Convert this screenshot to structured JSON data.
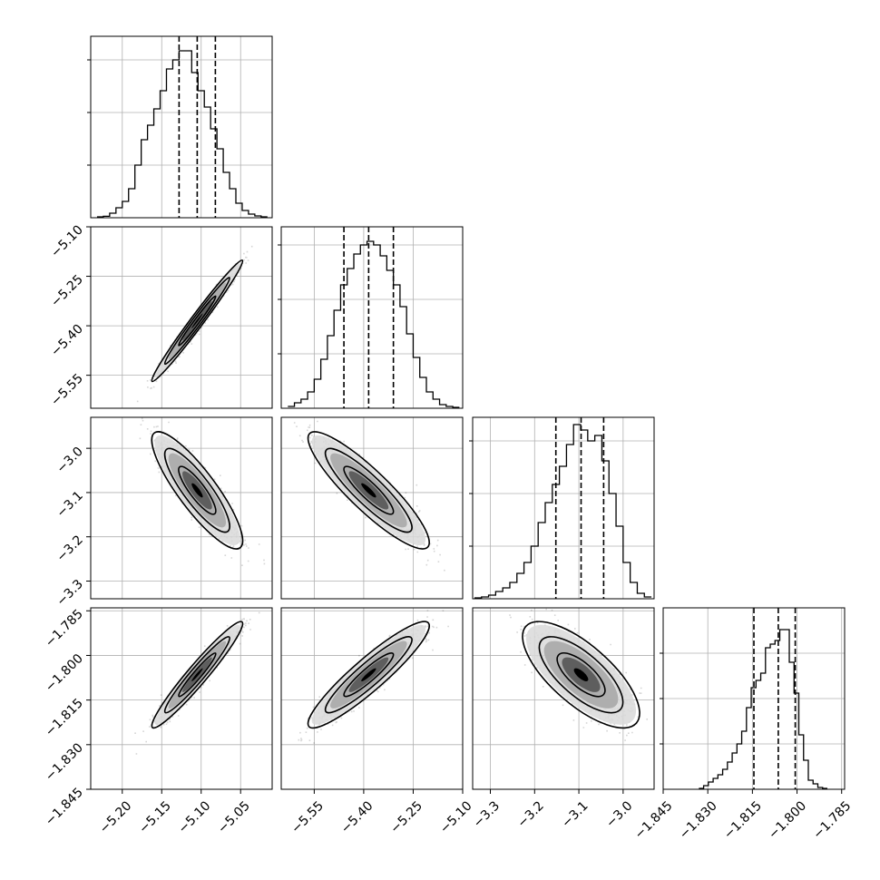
{
  "chart_data": {
    "type": "corner",
    "grid": true,
    "title": "",
    "parameters": [
      {
        "range": [
          -5.24,
          -5.01
        ],
        "ticks": [
          -5.2,
          -5.15,
          -5.1,
          -5.05
        ],
        "tick_labels": [
          "−5.20",
          "−5.15",
          "−5.10",
          "−5.05"
        ],
        "quantiles": [
          -5.128,
          -5.105,
          -5.082
        ],
        "hist_peak": 92,
        "hist_ymax": 100,
        "hist_yticks": [
          29,
          58,
          87
        ],
        "hist_edges": [
          -5.232,
          -5.224,
          -5.216,
          -5.208,
          -5.2,
          -5.192,
          -5.184,
          -5.176,
          -5.168,
          -5.16,
          -5.152,
          -5.144,
          -5.136,
          -5.128,
          -5.12,
          -5.112,
          -5.104,
          -5.096,
          -5.088,
          -5.08,
          -5.072,
          -5.064,
          -5.056,
          -5.048,
          -5.04,
          -5.032,
          -5.024,
          -5.016
        ],
        "hist_counts": [
          0.5,
          0.8,
          2.5,
          5.5,
          9,
          16,
          29,
          43,
          51,
          60,
          70,
          82,
          87,
          92,
          92,
          80,
          70,
          61,
          49,
          38,
          25,
          16,
          8,
          4,
          2,
          1,
          0.5
        ]
      },
      {
        "range": [
          -5.65,
          -5.1
        ],
        "ticks": [
          -5.55,
          -5.4,
          -5.25,
          -5.1
        ],
        "tick_labels": [
          "−5.55",
          "−5.40",
          "−5.25",
          "−5.10"
        ],
        "quantiles": [
          -5.46,
          -5.385,
          -5.31
        ],
        "hist_peak": 92,
        "hist_ymax": 100,
        "hist_yticks": [
          30,
          60,
          90
        ],
        "hist_edges": [
          -5.63,
          -5.61,
          -5.59,
          -5.57,
          -5.55,
          -5.53,
          -5.51,
          -5.49,
          -5.47,
          -5.45,
          -5.43,
          -5.41,
          -5.39,
          -5.37,
          -5.35,
          -5.33,
          -5.31,
          -5.29,
          -5.27,
          -5.25,
          -5.23,
          -5.21,
          -5.19,
          -5.17,
          -5.15,
          -5.13,
          -5.11
        ],
        "hist_counts": [
          1,
          3,
          5,
          9,
          16,
          27,
          40,
          54,
          68,
          77,
          85,
          90,
          92,
          90,
          84,
          76,
          68,
          56,
          41,
          28,
          17,
          9,
          5,
          2,
          1,
          0.5
        ]
      },
      {
        "range": [
          -3.34,
          -2.93
        ],
        "ticks": [
          -3.3,
          -3.2,
          -3.1,
          -3.0
        ],
        "tick_labels": [
          "−3.3",
          "−3.2",
          "−3.1",
          "−3.0"
        ],
        "quantiles": [
          -3.152,
          -3.095,
          -3.044
        ],
        "hist_peak": 96,
        "hist_ymax": 100,
        "hist_yticks": [
          29,
          58,
          87
        ],
        "hist_edges": [
          -3.336,
          -3.32,
          -3.304,
          -3.288,
          -3.272,
          -3.256,
          -3.24,
          -3.224,
          -3.208,
          -3.192,
          -3.176,
          -3.16,
          -3.144,
          -3.128,
          -3.112,
          -3.096,
          -3.08,
          -3.064,
          -3.048,
          -3.032,
          -3.016,
          -3.0,
          -2.984,
          -2.968,
          -2.952,
          -2.936
        ],
        "hist_counts": [
          0.5,
          1,
          2,
          4,
          6,
          9,
          14,
          20,
          29,
          42,
          53,
          63,
          73,
          85,
          96,
          93,
          87,
          90,
          76,
          58,
          40,
          20,
          9,
          3,
          1
        ]
      },
      {
        "range": [
          -1.845,
          -1.784
        ],
        "ticks": [
          -1.845,
          -1.83,
          -1.815,
          -1.8,
          -1.785
        ],
        "tick_labels": [
          "−1.845",
          "−1.830",
          "−1.815",
          "−1.800",
          "−1.785"
        ],
        "quantiles": [
          -1.8145,
          -1.8063,
          -1.8006
        ],
        "hist_peak": 88,
        "hist_ymax": 100,
        "hist_yticks": [
          25,
          50,
          75
        ],
        "hist_edges": [
          -1.833,
          -1.8314,
          -1.8298,
          -1.8282,
          -1.8266,
          -1.825,
          -1.8234,
          -1.8218,
          -1.8202,
          -1.8186,
          -1.817,
          -1.8154,
          -1.8138,
          -1.8122,
          -1.8106,
          -1.809,
          -1.8074,
          -1.8058,
          -1.8042,
          -1.8026,
          -1.801,
          -1.7994,
          -1.7978,
          -1.7962,
          -1.7946,
          -1.793,
          -1.7914,
          -1.7898
        ],
        "hist_counts": [
          0.5,
          2,
          4,
          6,
          8,
          11,
          15,
          20,
          25,
          32,
          45,
          56,
          60,
          64,
          78,
          80,
          82,
          88,
          88,
          70,
          53,
          30,
          16,
          5,
          3,
          1,
          0.5
        ]
      }
    ],
    "joint": [
      {
        "row": 1,
        "col": 0,
        "mean": [
          -5.105,
          -5.385
        ],
        "std": [
          0.0235,
          0.075
        ],
        "corr": 0.985
      },
      {
        "row": 2,
        "col": 0,
        "mean": [
          -5.105,
          -3.095
        ],
        "std": [
          0.0235,
          0.054
        ],
        "corr": -0.86
      },
      {
        "row": 2,
        "col": 1,
        "mean": [
          -5.385,
          -3.095
        ],
        "std": [
          0.075,
          0.054
        ],
        "corr": -0.89
      },
      {
        "row": 3,
        "col": 0,
        "mean": [
          -5.105,
          -1.8065
        ],
        "std": [
          0.0235,
          0.0073
        ],
        "corr": 0.96
      },
      {
        "row": 3,
        "col": 1,
        "mean": [
          -5.385,
          -1.8065
        ],
        "std": [
          0.075,
          0.0073
        ],
        "corr": 0.92
      },
      {
        "row": 3,
        "col": 2,
        "mean": [
          -3.095,
          -1.8065
        ],
        "std": [
          0.054,
          0.0073
        ],
        "corr": -0.72
      }
    ]
  }
}
